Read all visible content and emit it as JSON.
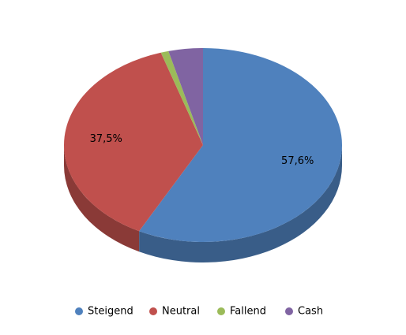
{
  "chart_data": {
    "type": "pie",
    "categories": [
      "Steigend",
      "Neutral",
      "Fallend",
      "Cash"
    ],
    "values": [
      57.6,
      37.5,
      0.9,
      4.0
    ],
    "value_labels": [
      "57,6%",
      "37,5%",
      null,
      null
    ],
    "colors": [
      "#4f81bd",
      "#c0504d",
      "#9bbb59",
      "#8064a2"
    ],
    "legend": "bottom"
  }
}
